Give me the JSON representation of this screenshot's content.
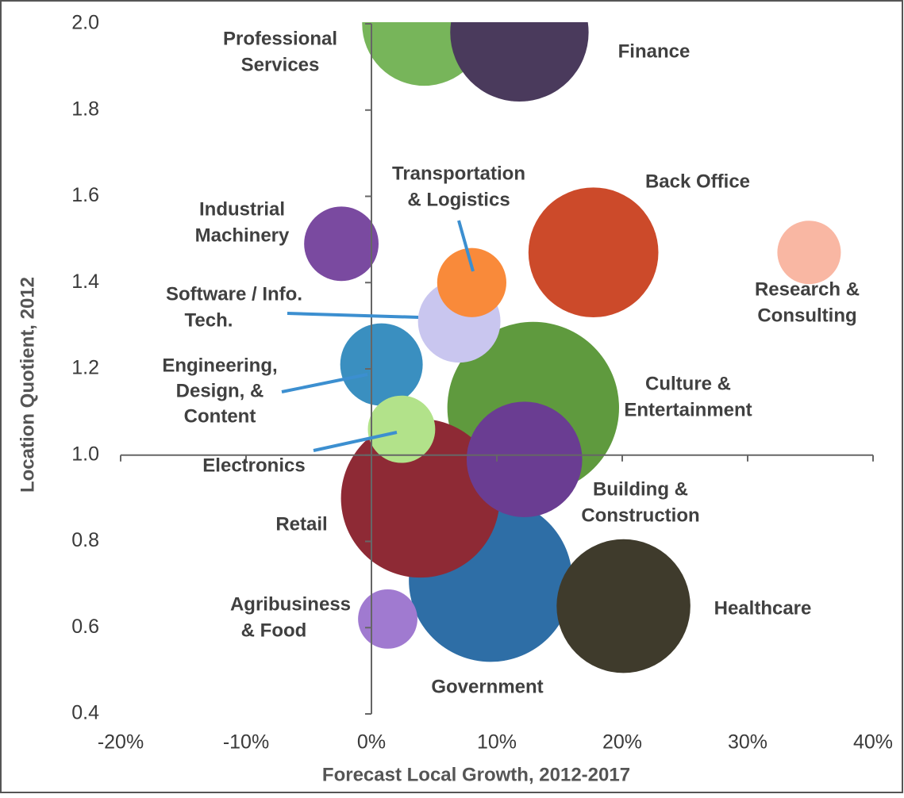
{
  "chart_data": {
    "type": "bubble",
    "xlabel": "Forecast Local Growth, 2012-2017",
    "ylabel": "Location Quotient, 2012",
    "xlim": [
      -20,
      40
    ],
    "ylim": [
      0.4,
      2.0
    ],
    "xticks": [
      {
        "value": -20,
        "label": "-20%"
      },
      {
        "value": -10,
        "label": "-10%"
      },
      {
        "value": 0,
        "label": "0%"
      },
      {
        "value": 10,
        "label": "10%"
      },
      {
        "value": 20,
        "label": "20%"
      },
      {
        "value": 30,
        "label": "30%"
      },
      {
        "value": 40,
        "label": "40%"
      }
    ],
    "yticks": [
      0.4,
      0.6,
      0.8,
      {
        "value": 1.0,
        "label": "1.0"
      },
      1.2,
      1.4,
      1.6,
      1.8,
      {
        "value": 2.0,
        "label": "2.0"
      }
    ],
    "points": [
      {
        "label": [
          "Professional",
          "Services"
        ],
        "x": 4.2,
        "y": 2.0,
        "size": 61,
        "color": "#77b55a"
      },
      {
        "label": [
          "Finance"
        ],
        "x": 11.8,
        "y": 1.98,
        "size": 76,
        "color": "#4a3a5c"
      },
      {
        "label": [
          "Government"
        ],
        "x": 9.5,
        "y": 0.71,
        "size": 106,
        "color": "#2e6ea6"
      },
      {
        "label": [
          "Healthcare"
        ],
        "x": 20.1,
        "y": 0.65,
        "size": 71,
        "color": "#3f3b2c"
      },
      {
        "label": [
          "Culture &",
          "Entertainment"
        ],
        "x": 12.9,
        "y": 1.11,
        "size": 117,
        "color": "#5f9a3e"
      },
      {
        "label": [
          "Retail"
        ],
        "x": 3.9,
        "y": 0.9,
        "size": 100,
        "color": "#8e2a35"
      },
      {
        "label": [
          "Building &",
          "Construction"
        ],
        "x": 12.2,
        "y": 0.99,
        "size": 53,
        "color": "#6a3d92"
      },
      {
        "label": [
          "Back Office"
        ],
        "x": 17.7,
        "y": 1.47,
        "size": 67,
        "color": "#cc4a2a"
      },
      {
        "label": [
          "Industrial",
          "Machinery"
        ],
        "x": -2.4,
        "y": 1.49,
        "size": 22,
        "color": "#7a4aa0"
      },
      {
        "label": [
          "Research &",
          "Consulting"
        ],
        "x": 34.9,
        "y": 1.47,
        "size": 16,
        "color": "#f9b7a3"
      },
      {
        "label": [
          "Software / Info.",
          "Tech."
        ],
        "x": 7.0,
        "y": 1.31,
        "size": 27,
        "color": "#c9c6ef"
      },
      {
        "label": [
          "Transportation",
          "& Logistics"
        ],
        "x": 8.0,
        "y": 1.4,
        "size": 19,
        "color": "#f98a3a"
      },
      {
        "label": [
          "Engineering,",
          "Design, &",
          "Content"
        ],
        "x": 0.8,
        "y": 1.21,
        "size": 27,
        "color": "#3a8fc0"
      },
      {
        "label": [
          "Electronics"
        ],
        "x": 2.4,
        "y": 1.06,
        "size": 18,
        "color": "#b2e28a"
      },
      {
        "label": [
          "Agribusiness",
          "& Food"
        ],
        "x": 1.3,
        "y": 0.62,
        "size": 14,
        "color": "#a07ad0"
      }
    ]
  }
}
